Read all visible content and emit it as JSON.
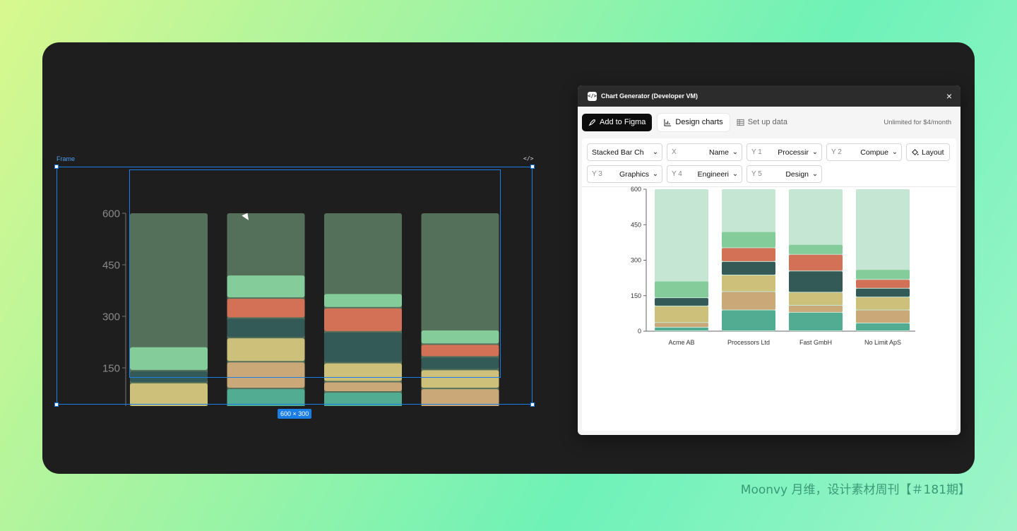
{
  "figma": {
    "frame_label": "Frame",
    "code_glyph": "</>",
    "size_badge": "600 × 300"
  },
  "plugin": {
    "app_icon": "</>",
    "title": "Chart Generator (Developer VM)",
    "close_icon": "×",
    "toolbar": {
      "add_label": "Add to Figma",
      "design_label": "Design charts",
      "data_label": "Set up data",
      "upsell": "Unlimited for $4/month"
    },
    "controls": [
      {
        "key": "",
        "value": "Stacked Bar Ch",
        "name": "chart-type-select"
      },
      {
        "key": "X",
        "value": "Name",
        "name": "x-select"
      },
      {
        "key": "Y 1",
        "value": "Processir",
        "name": "y1-select"
      },
      {
        "key": "Y 2",
        "value": "Compue",
        "name": "y2-select"
      },
      {
        "key": "Y 3",
        "value": "Graphics",
        "name": "y3-select"
      },
      {
        "key": "Y 4",
        "value": "Engineeri",
        "name": "y4-select"
      },
      {
        "key": "Y 5",
        "value": "Design",
        "name": "y5-select"
      }
    ],
    "layout_label": "Layout"
  },
  "colors": {
    "dark_remainder": "#55705a",
    "light_remainder": "#c4e6d3",
    "segments": [
      "#52ac92",
      "#cba877",
      "#ccc07a",
      "#345a58",
      "#d37157",
      "#84cc9a"
    ]
  },
  "chart_data": {
    "type": "bar",
    "stacked": true,
    "categories": [
      "Acme AB",
      "Processors Ltd",
      "Fast GmbH",
      "No Limit ApS"
    ],
    "series": [
      {
        "values": [
          15,
          88,
          78,
          33
        ]
      },
      {
        "values": [
          20,
          78,
          30,
          55
        ]
      },
      {
        "values": [
          70,
          70,
          55,
          55
        ]
      },
      {
        "values": [
          35,
          57,
          90,
          37
        ]
      },
      {
        "values": [
          0,
          58,
          70,
          37
        ]
      },
      {
        "values": [
          70,
          68,
          42,
          42
        ]
      }
    ],
    "total": 600,
    "yticks": [
      0,
      150,
      300,
      450,
      600
    ],
    "ylim": [
      0,
      600
    ],
    "grid": false
  },
  "footer": "Moonvy 月维，设计素材周刊【＃181期】"
}
